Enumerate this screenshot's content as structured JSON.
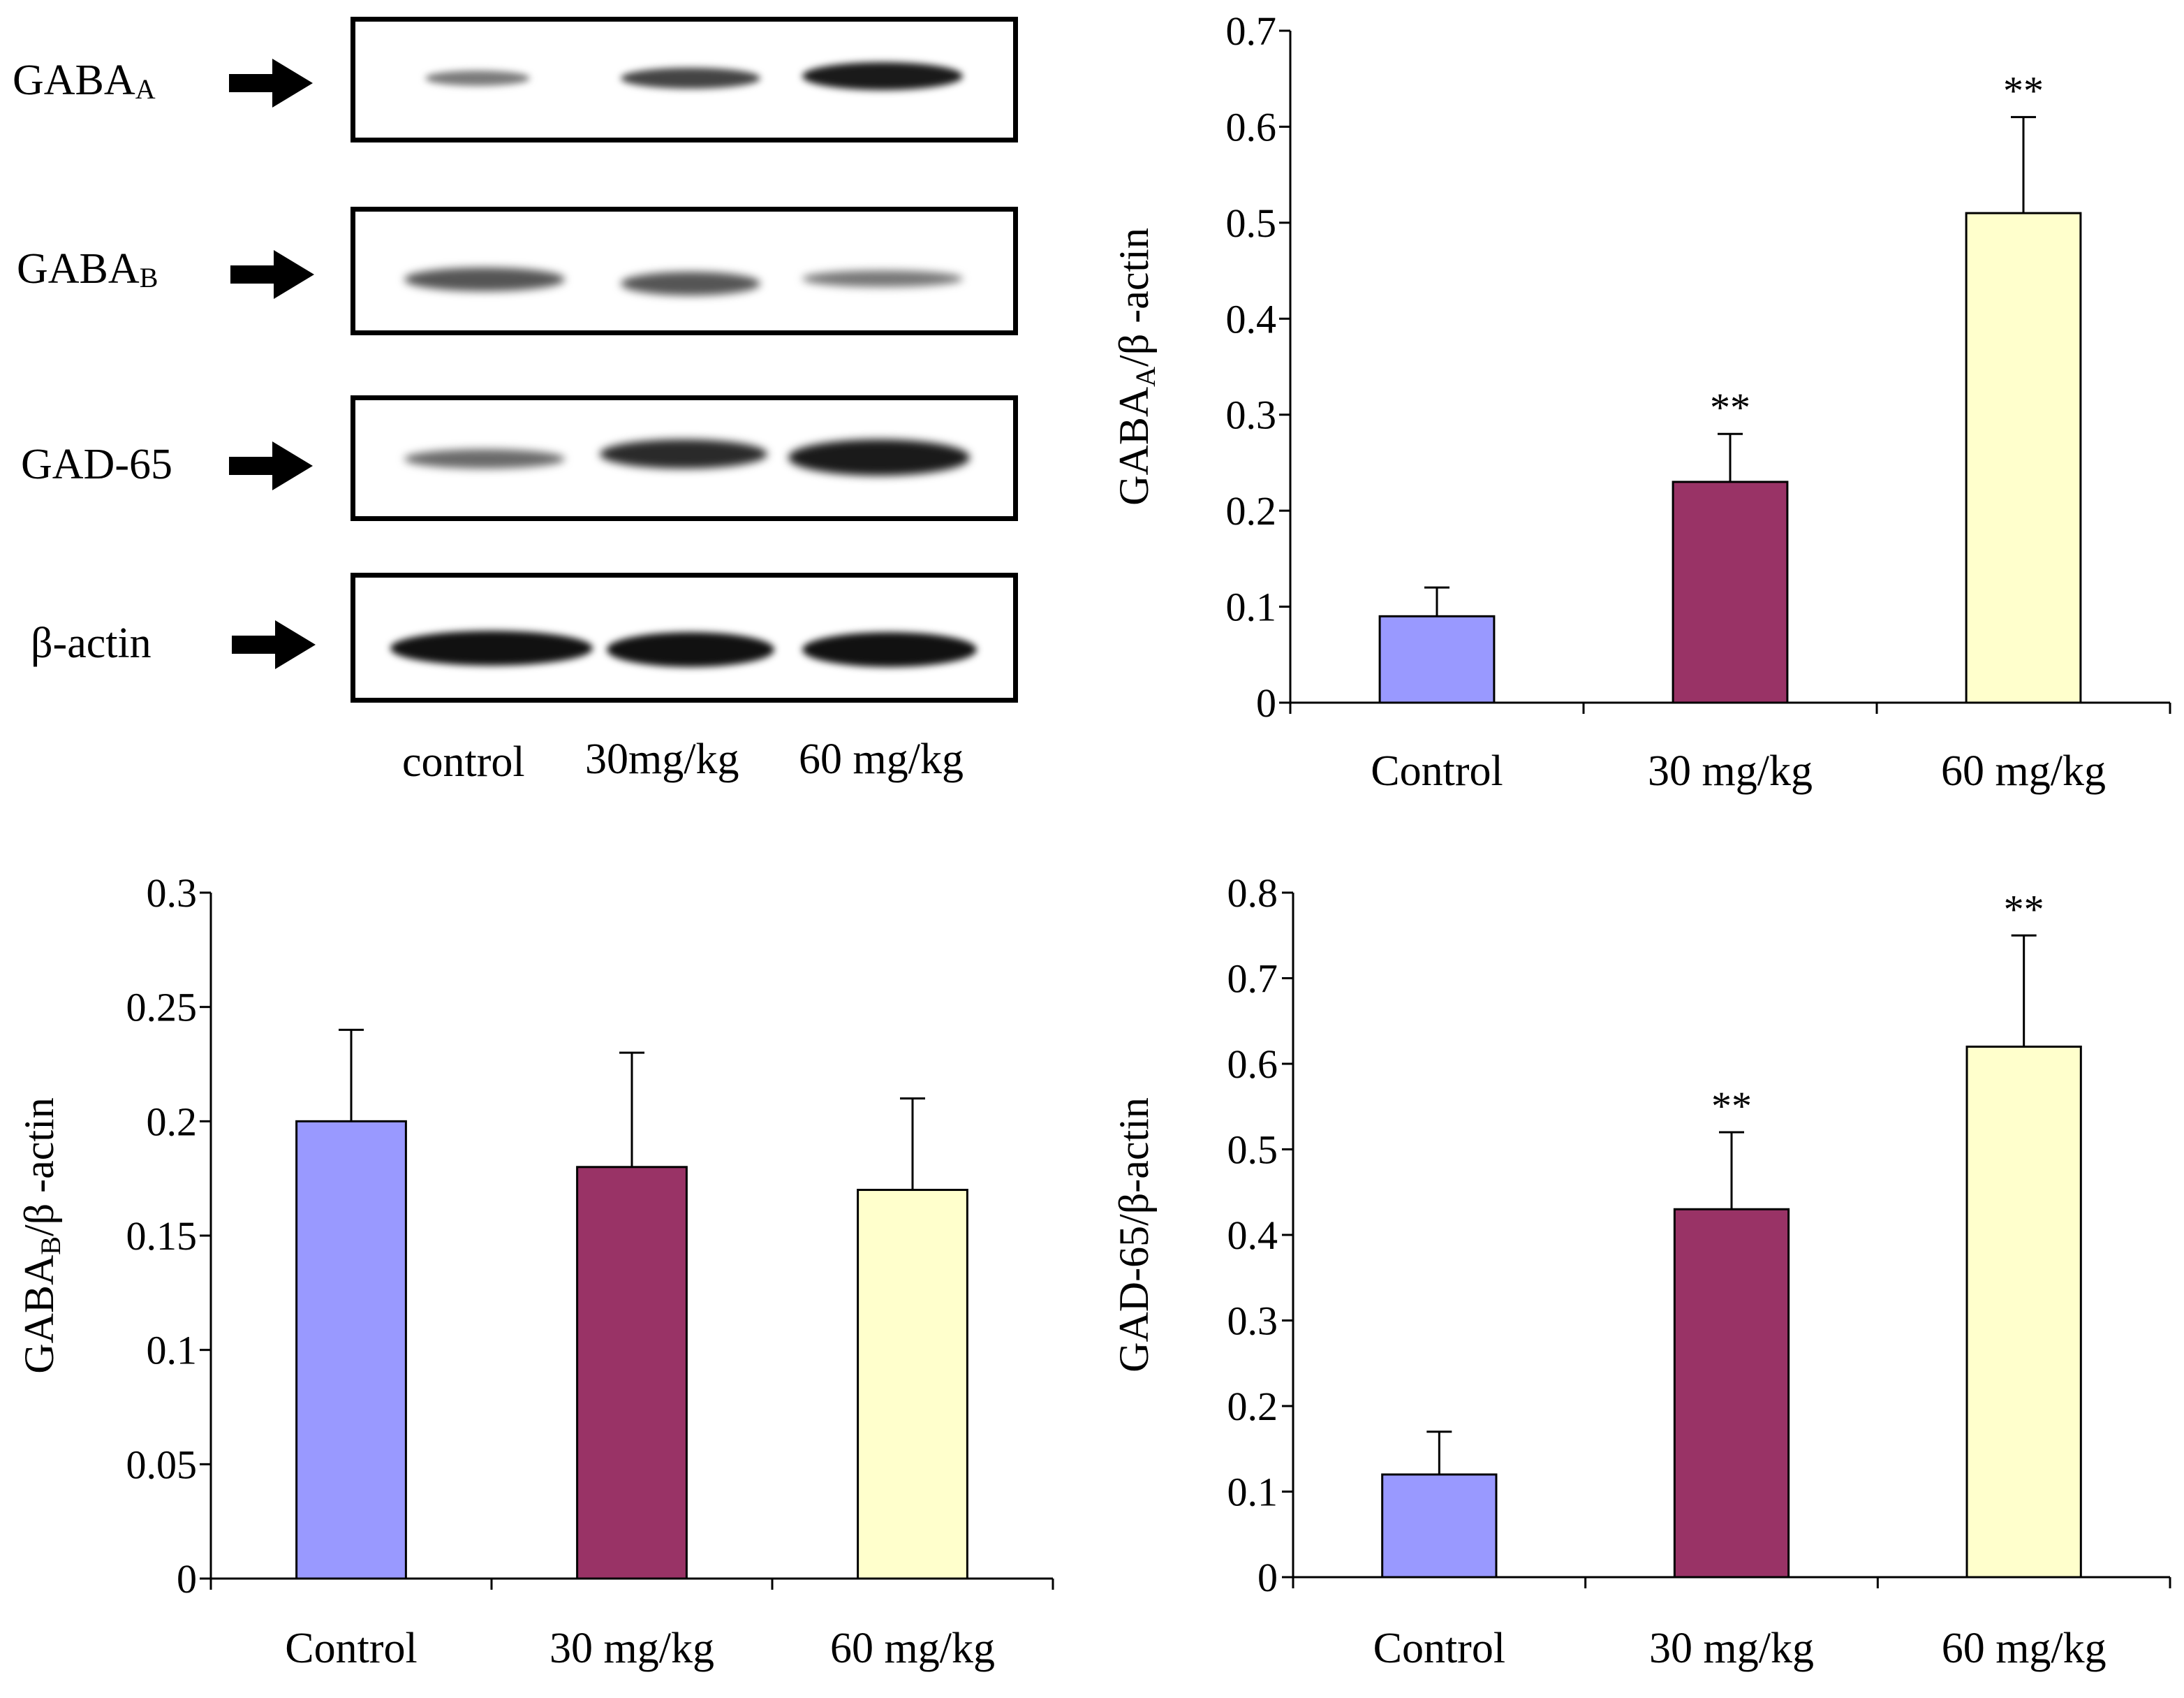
{
  "blot": {
    "rows": [
      {
        "label": "GABA",
        "sub": "A"
      },
      {
        "label": "GABA",
        "sub": "B"
      },
      {
        "label": "GAD-65",
        "sub": ""
      },
      {
        "label": "β-actin",
        "sub": ""
      }
    ],
    "lanes": [
      "control",
      "30mg/kg",
      "60 mg/kg"
    ]
  },
  "colors": {
    "control": "#9999ff",
    "dose30": "#993366",
    "dose60": "#ffffcc"
  },
  "chart_data": [
    {
      "type": "bar",
      "categories": [
        "Control",
        "30 mg/kg",
        "60 mg/kg"
      ],
      "values": [
        0.09,
        0.23,
        0.51
      ],
      "errors": [
        0.03,
        0.05,
        0.1
      ],
      "annotations": [
        "",
        "**",
        "**"
      ],
      "ylabel": "GABA",
      "ylabel_sub": "A",
      "ylabel_suffix": "/β -actin",
      "ylim": [
        0,
        0.7
      ],
      "yticks": [
        "0",
        "0.1",
        "0.2",
        "0.3",
        "0.4",
        "0.5",
        "0.6",
        "0.7"
      ]
    },
    {
      "type": "bar",
      "categories": [
        "Control",
        "30 mg/kg",
        "60 mg/kg"
      ],
      "values": [
        0.2,
        0.18,
        0.17
      ],
      "errors": [
        0.04,
        0.05,
        0.04
      ],
      "annotations": [
        "",
        "",
        ""
      ],
      "ylabel": "GABA",
      "ylabel_sub": "B",
      "ylabel_suffix": "/β -actin",
      "ylim": [
        0,
        0.3
      ],
      "yticks": [
        "0",
        "0.05",
        "0.1",
        "0.15",
        "0.2",
        "0.25",
        "0.3"
      ]
    },
    {
      "type": "bar",
      "categories": [
        "Control",
        "30 mg/kg",
        "60 mg/kg"
      ],
      "values": [
        0.12,
        0.43,
        0.62
      ],
      "errors": [
        0.05,
        0.09,
        0.13
      ],
      "annotations": [
        "",
        "**",
        "**"
      ],
      "ylabel": "GAD-65/β-actin",
      "ylabel_sub": "",
      "ylabel_suffix": "",
      "ylim": [
        0,
        0.8
      ],
      "yticks": [
        "0",
        "0.1",
        "0.2",
        "0.3",
        "0.4",
        "0.5",
        "0.6",
        "0.7",
        "0.8"
      ]
    }
  ]
}
